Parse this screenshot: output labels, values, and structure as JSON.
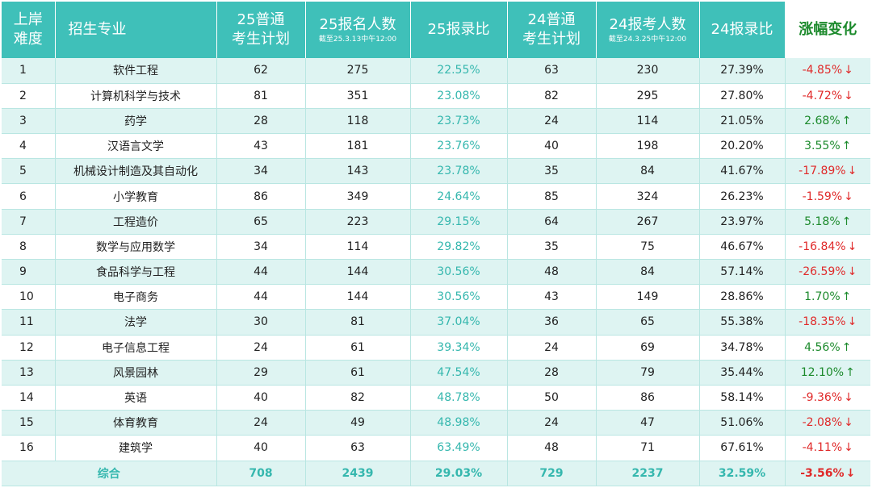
{
  "headers": {
    "difficulty": "上岸\n难度",
    "major": "招生专业",
    "plan25": "25普通\n考生计划",
    "applicants25": "25报名人数",
    "applicants25_note": "截至25.3.13中午12:00",
    "ratio25": "25报录比",
    "plan24": "24普通\n考生计划",
    "applicants24": "24报考人数",
    "applicants24_note": "截至24.3.25中午12:00",
    "ratio24": "24报录比",
    "change": "涨幅变化"
  },
  "colors": {
    "header_bg": "#3fc0b9",
    "stripe_bg": "#def4f2",
    "teal_text": "#35b7ae",
    "up_green": "#1c8a2c",
    "down_red": "#e02a2a"
  },
  "rows": [
    {
      "rank": "1",
      "major": "软件工程",
      "plan25": "62",
      "applicants25": "275",
      "ratio25": "22.55%",
      "plan24": "63",
      "applicants24": "230",
      "ratio24": "27.39%",
      "change": "-4.85%",
      "arrow": "↓",
      "direction": "down"
    },
    {
      "rank": "2",
      "major": "计算机科学与技术",
      "plan25": "81",
      "applicants25": "351",
      "ratio25": "23.08%",
      "plan24": "82",
      "applicants24": "295",
      "ratio24": "27.80%",
      "change": "-4.72%",
      "arrow": "↓",
      "direction": "down"
    },
    {
      "rank": "3",
      "major": "药学",
      "plan25": "28",
      "applicants25": "118",
      "ratio25": "23.73%",
      "plan24": "24",
      "applicants24": "114",
      "ratio24": "21.05%",
      "change": "2.68%",
      "arrow": "↑",
      "direction": "up"
    },
    {
      "rank": "4",
      "major": "汉语言文学",
      "plan25": "43",
      "applicants25": "181",
      "ratio25": "23.76%",
      "plan24": "40",
      "applicants24": "198",
      "ratio24": "20.20%",
      "change": "3.55%",
      "arrow": "↑",
      "direction": "up"
    },
    {
      "rank": "5",
      "major": "机械设计制造及其自动化",
      "plan25": "34",
      "applicants25": "143",
      "ratio25": "23.78%",
      "plan24": "35",
      "applicants24": "84",
      "ratio24": "41.67%",
      "change": "-17.89%",
      "arrow": "↓",
      "direction": "down"
    },
    {
      "rank": "6",
      "major": "小学教育",
      "plan25": "86",
      "applicants25": "349",
      "ratio25": "24.64%",
      "plan24": "85",
      "applicants24": "324",
      "ratio24": "26.23%",
      "change": "-1.59%",
      "arrow": "↓",
      "direction": "down"
    },
    {
      "rank": "7",
      "major": "工程造价",
      "plan25": "65",
      "applicants25": "223",
      "ratio25": "29.15%",
      "plan24": "64",
      "applicants24": "267",
      "ratio24": "23.97%",
      "change": "5.18%",
      "arrow": "↑",
      "direction": "up"
    },
    {
      "rank": "8",
      "major": "数学与应用数学",
      "plan25": "34",
      "applicants25": "114",
      "ratio25": "29.82%",
      "plan24": "35",
      "applicants24": "75",
      "ratio24": "46.67%",
      "change": "-16.84%",
      "arrow": "↓",
      "direction": "down"
    },
    {
      "rank": "9",
      "major": "食品科学与工程",
      "plan25": "44",
      "applicants25": "144",
      "ratio25": "30.56%",
      "plan24": "48",
      "applicants24": "84",
      "ratio24": "57.14%",
      "change": "-26.59%",
      "arrow": "↓",
      "direction": "down"
    },
    {
      "rank": "10",
      "major": "电子商务",
      "plan25": "44",
      "applicants25": "144",
      "ratio25": "30.56%",
      "plan24": "43",
      "applicants24": "149",
      "ratio24": "28.86%",
      "change": "1.70%",
      "arrow": "↑",
      "direction": "up"
    },
    {
      "rank": "11",
      "major": "法学",
      "plan25": "30",
      "applicants25": "81",
      "ratio25": "37.04%",
      "plan24": "36",
      "applicants24": "65",
      "ratio24": "55.38%",
      "change": "-18.35%",
      "arrow": "↓",
      "direction": "down"
    },
    {
      "rank": "12",
      "major": "电子信息工程",
      "plan25": "24",
      "applicants25": "61",
      "ratio25": "39.34%",
      "plan24": "24",
      "applicants24": "69",
      "ratio24": "34.78%",
      "change": "4.56%",
      "arrow": "↑",
      "direction": "up"
    },
    {
      "rank": "13",
      "major": "风景园林",
      "plan25": "29",
      "applicants25": "61",
      "ratio25": "47.54%",
      "plan24": "28",
      "applicants24": "79",
      "ratio24": "35.44%",
      "change": "12.10%",
      "arrow": "↑",
      "direction": "up"
    },
    {
      "rank": "14",
      "major": "英语",
      "plan25": "40",
      "applicants25": "82",
      "ratio25": "48.78%",
      "plan24": "50",
      "applicants24": "86",
      "ratio24": "58.14%",
      "change": "-9.36%",
      "arrow": "↓",
      "direction": "down"
    },
    {
      "rank": "15",
      "major": "体育教育",
      "plan25": "24",
      "applicants25": "49",
      "ratio25": "48.98%",
      "plan24": "24",
      "applicants24": "47",
      "ratio24": "51.06%",
      "change": "-2.08%",
      "arrow": "↓",
      "direction": "down"
    },
    {
      "rank": "16",
      "major": "建筑学",
      "plan25": "40",
      "applicants25": "63",
      "ratio25": "63.49%",
      "plan24": "48",
      "applicants24": "71",
      "ratio24": "67.61%",
      "change": "-4.11%",
      "arrow": "↓",
      "direction": "down"
    }
  ],
  "total": {
    "label": "综合",
    "plan25": "708",
    "applicants25": "2439",
    "ratio25": "29.03%",
    "plan24": "729",
    "applicants24": "2237",
    "ratio24": "32.59%",
    "change": "-3.56%",
    "arrow": "↓",
    "direction": "down"
  }
}
